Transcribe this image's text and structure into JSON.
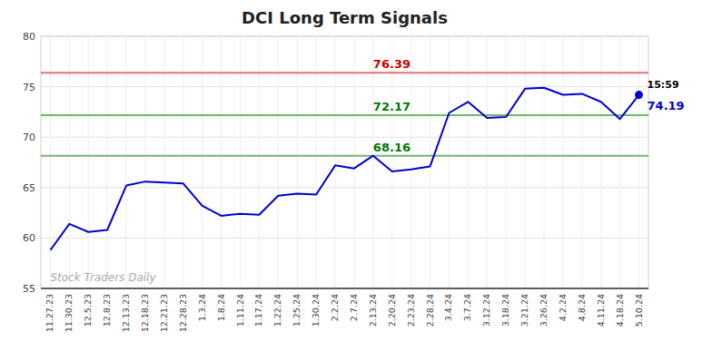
{
  "chart_data": {
    "type": "line",
    "title": "DCI Long Term Signals",
    "categories": [
      "11.27.23",
      "11.30.23",
      "12.5.23",
      "12.8.23",
      "12.13.23",
      "12.18.23",
      "12.21.23",
      "12.28.23",
      "1.3.24",
      "1.8.24",
      "1.11.24",
      "1.17.24",
      "1.22.24",
      "1.25.24",
      "1.30.24",
      "2.2.24",
      "2.7.24",
      "2.13.24",
      "2.20.24",
      "2.23.24",
      "2.28.24",
      "3.4.24",
      "3.7.24",
      "3.12.24",
      "3.18.24",
      "3.21.24",
      "3.26.24",
      "4.2.24",
      "4.8.24",
      "4.11.24",
      "4.18.24",
      "5.10.24"
    ],
    "series": [
      {
        "color": "#0000cc",
        "values": [
          58.8,
          61.4,
          60.6,
          60.8,
          65.2,
          65.6,
          65.5,
          65.4,
          63.2,
          62.2,
          62.4,
          62.3,
          64.2,
          64.4,
          64.3,
          67.2,
          66.9,
          68.16,
          66.6,
          66.8,
          67.1,
          72.4,
          73.5,
          71.9,
          72.0,
          74.8,
          74.9,
          74.2,
          74.3,
          73.5,
          71.8,
          74.19
        ]
      }
    ],
    "reference_lines": [
      {
        "value": 76.39,
        "color": "#cc0000"
      },
      {
        "value": 72.17,
        "color": "#007700"
      },
      {
        "value": 68.16,
        "color": "#007700"
      }
    ],
    "annotations": [
      {
        "text": "15:59"
      }
    ],
    "watermark": "Stock Traders Daily",
    "ylim": [
      55,
      80
    ],
    "yticks": [
      55,
      60,
      65,
      70,
      75,
      80
    ],
    "grid": true
  }
}
